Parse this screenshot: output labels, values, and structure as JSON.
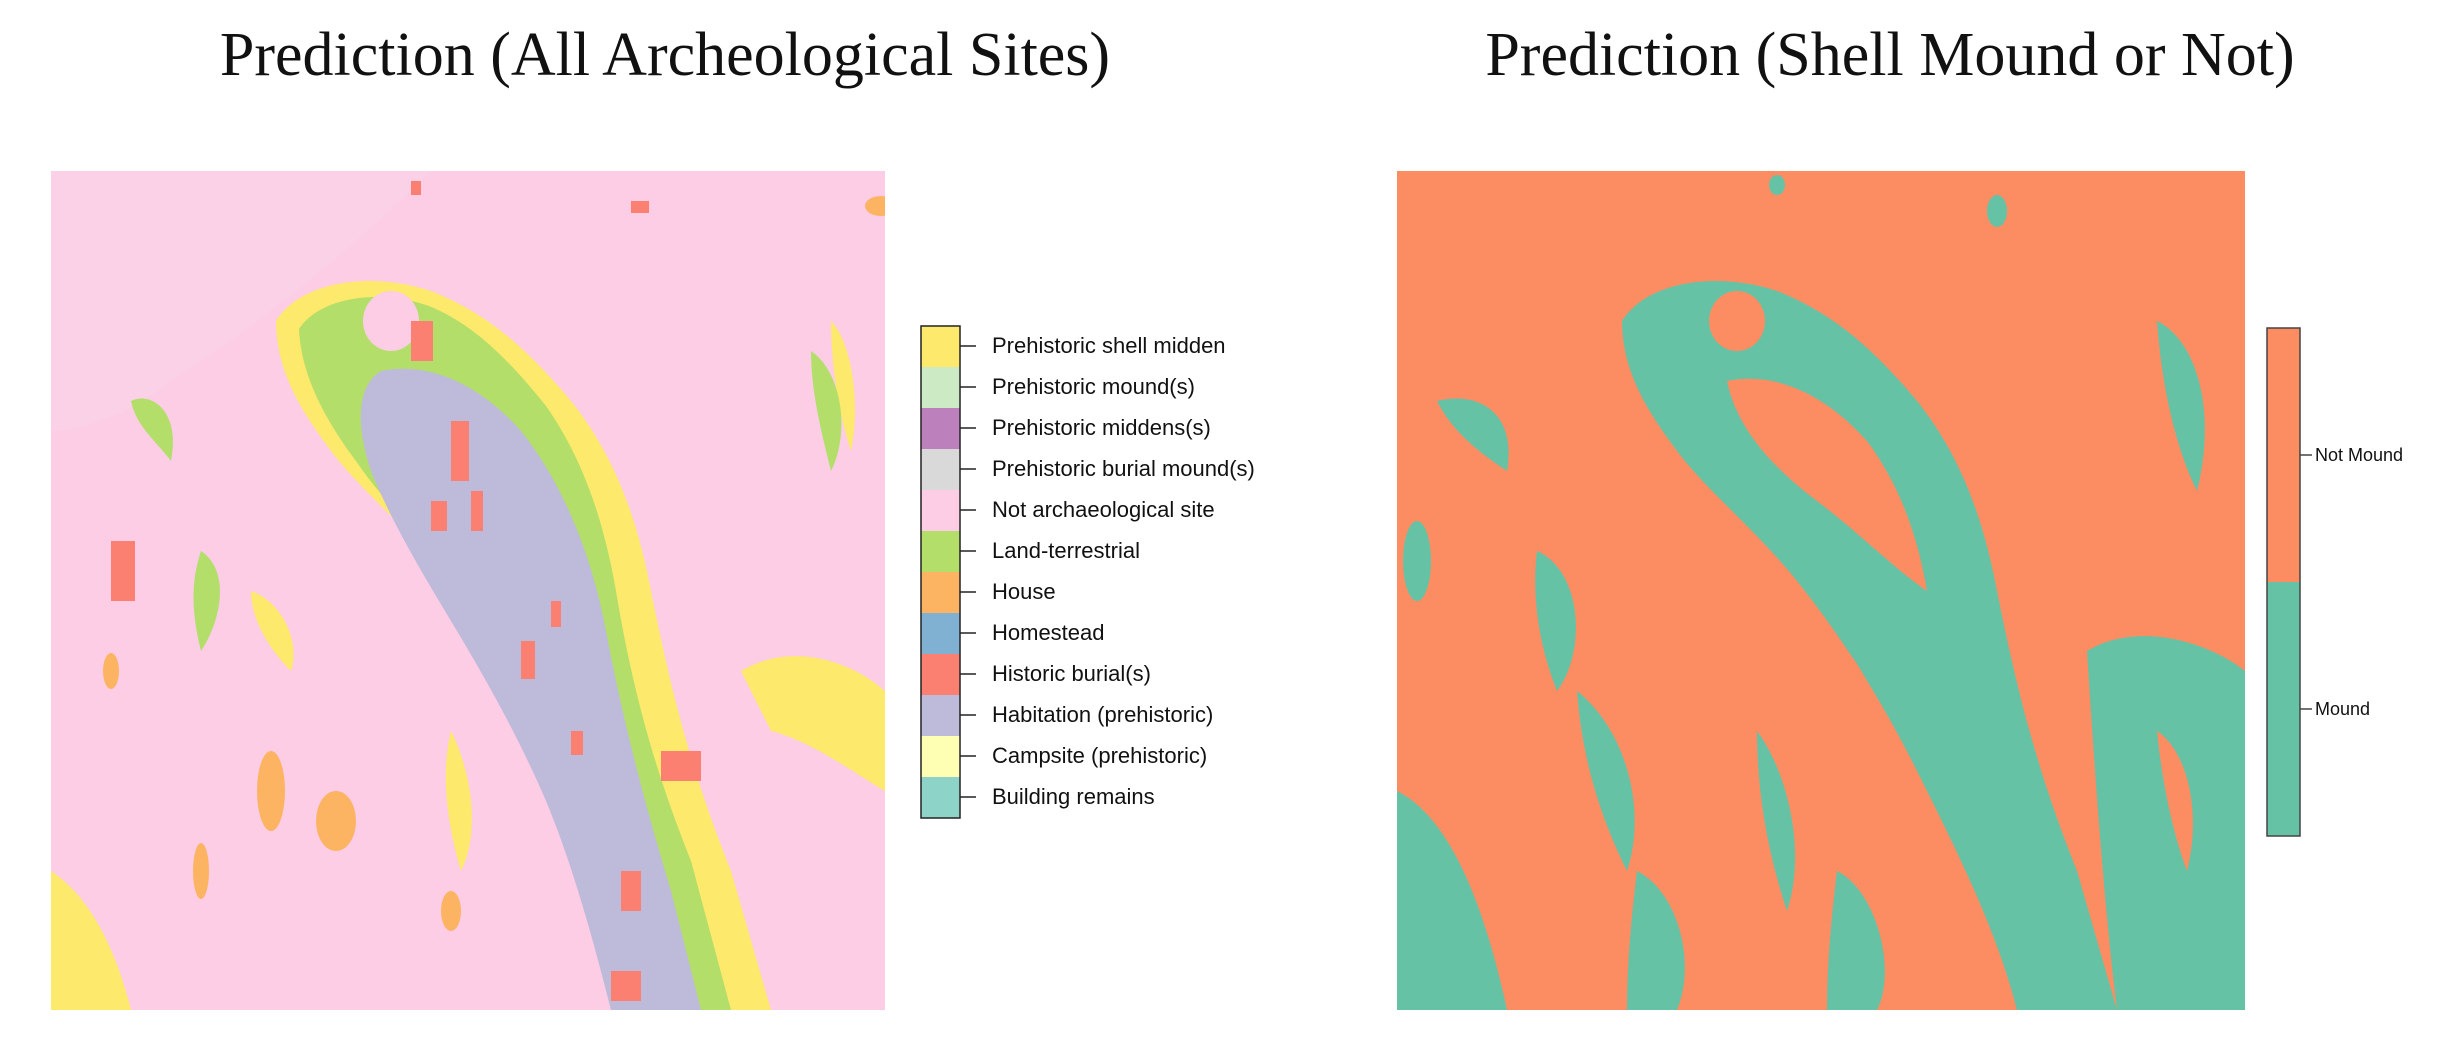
{
  "panels": [
    {
      "title": "Prediction (All Archeological Sites)",
      "background_class": "Not archaeological site",
      "legend": [
        {
          "label": "Prehistoric shell midden",
          "color": "#FDE96B"
        },
        {
          "label": "Prehistoric mound(s)",
          "color": "#CCEBC5"
        },
        {
          "label": "Prehistoric middens(s)",
          "color": "#BC80BD"
        },
        {
          "label": "Prehistoric burial mound(s)",
          "color": "#D9D9D9"
        },
        {
          "label": "Not archaeological site",
          "color": "#FCCDE5"
        },
        {
          "label": "Land-terrestrial",
          "color": "#B3DE69"
        },
        {
          "label": "House",
          "color": "#FDB462"
        },
        {
          "label": "Homestead",
          "color": "#80B1D3"
        },
        {
          "label": "Historic burial(s)",
          "color": "#FB8072"
        },
        {
          "label": "Habitation (prehistoric)",
          "color": "#BEBADA"
        },
        {
          "label": "Campsite (prehistoric)",
          "color": "#FFFFB3"
        },
        {
          "label": "Building remains",
          "color": "#8DD3C7"
        }
      ]
    },
    {
      "title": "Prediction (Shell Mound or Not)",
      "background_class": "Not Mound",
      "legend": [
        {
          "label": "Not Mound",
          "color": "#FC8D62"
        },
        {
          "label": "Mound",
          "color": "#66C2A5"
        }
      ]
    }
  ]
}
